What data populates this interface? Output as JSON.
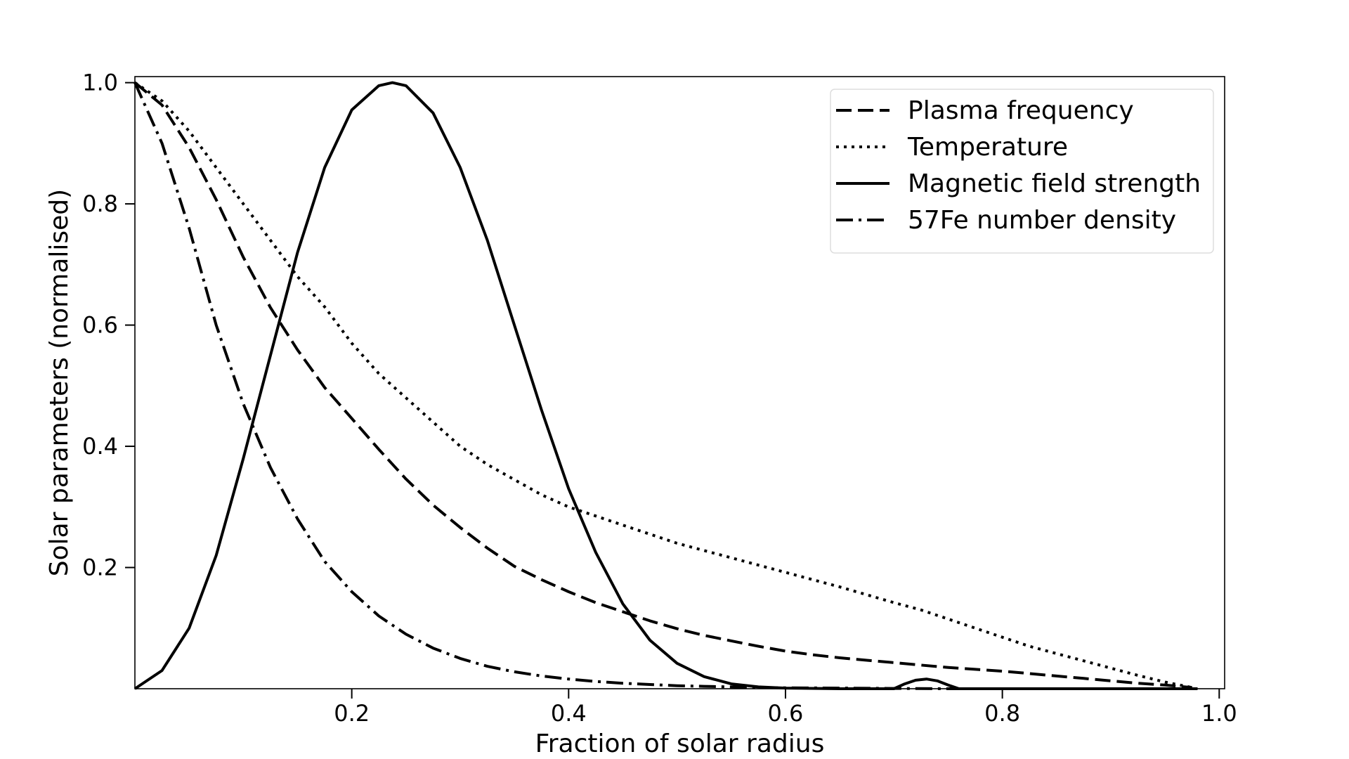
{
  "chart_data": {
    "type": "line",
    "title": "",
    "xlabel": "Fraction of solar radius",
    "ylabel": "Solar parameters (normalised)",
    "xlim": [
      0.0,
      1.005
    ],
    "ylim": [
      0.0,
      1.01
    ],
    "xticks": [
      0.2,
      0.4,
      0.6,
      0.8,
      1.0
    ],
    "xtick_labels": [
      "0.2",
      "0.4",
      "0.6",
      "0.8",
      "1.0"
    ],
    "yticks": [
      0.2,
      0.4,
      0.6,
      0.8,
      1.0
    ],
    "ytick_labels": [
      "0.2",
      "0.4",
      "0.6",
      "0.8",
      "1.0"
    ],
    "grid": false,
    "legend_position": "top-right",
    "series": [
      {
        "name": "Plasma frequency",
        "style": "dashed",
        "color": "#000000",
        "x": [
          0.0,
          0.025,
          0.05,
          0.075,
          0.1,
          0.125,
          0.15,
          0.175,
          0.2,
          0.225,
          0.25,
          0.275,
          0.3,
          0.325,
          0.35,
          0.375,
          0.4,
          0.425,
          0.45,
          0.475,
          0.5,
          0.525,
          0.55,
          0.575,
          0.6,
          0.625,
          0.65,
          0.675,
          0.7,
          0.725,
          0.75,
          0.775,
          0.8,
          0.825,
          0.85,
          0.875,
          0.9,
          0.925,
          0.95,
          0.975
        ],
        "y": [
          1.0,
          0.963,
          0.893,
          0.807,
          0.712,
          0.629,
          0.559,
          0.497,
          0.446,
          0.395,
          0.346,
          0.303,
          0.266,
          0.232,
          0.202,
          0.18,
          0.16,
          0.142,
          0.127,
          0.112,
          0.099,
          0.088,
          0.079,
          0.07,
          0.062,
          0.056,
          0.051,
          0.047,
          0.043,
          0.039,
          0.035,
          0.032,
          0.029,
          0.025,
          0.021,
          0.017,
          0.013,
          0.009,
          0.006,
          0.002
        ]
      },
      {
        "name": "Temperature",
        "style": "dotted",
        "color": "#000000",
        "x": [
          0.0,
          0.025,
          0.05,
          0.075,
          0.1,
          0.125,
          0.15,
          0.175,
          0.2,
          0.225,
          0.25,
          0.275,
          0.3,
          0.325,
          0.35,
          0.375,
          0.4,
          0.425,
          0.45,
          0.475,
          0.5,
          0.525,
          0.55,
          0.575,
          0.6,
          0.625,
          0.65,
          0.675,
          0.7,
          0.725,
          0.75,
          0.775,
          0.8,
          0.825,
          0.85,
          0.875,
          0.9,
          0.925,
          0.95,
          0.975
        ],
        "y": [
          1.0,
          0.97,
          0.92,
          0.86,
          0.8,
          0.74,
          0.68,
          0.63,
          0.57,
          0.52,
          0.48,
          0.44,
          0.4,
          0.37,
          0.345,
          0.32,
          0.3,
          0.285,
          0.27,
          0.255,
          0.24,
          0.228,
          0.216,
          0.204,
          0.192,
          0.18,
          0.168,
          0.155,
          0.142,
          0.13,
          0.115,
          0.1,
          0.085,
          0.07,
          0.058,
          0.046,
          0.034,
          0.022,
          0.011,
          0.002
        ]
      },
      {
        "name": "Magnetic field strength",
        "style": "solid",
        "color": "#000000",
        "x": [
          0.0,
          0.025,
          0.05,
          0.075,
          0.1,
          0.125,
          0.15,
          0.175,
          0.2,
          0.225,
          0.2375,
          0.25,
          0.275,
          0.3,
          0.325,
          0.35,
          0.375,
          0.4,
          0.425,
          0.45,
          0.475,
          0.5,
          0.525,
          0.55,
          0.575,
          0.6,
          0.65,
          0.7,
          0.71,
          0.72,
          0.73,
          0.74,
          0.75,
          0.76,
          0.8,
          0.9,
          0.98
        ],
        "y": [
          0.0,
          0.03,
          0.1,
          0.22,
          0.38,
          0.55,
          0.72,
          0.86,
          0.955,
          0.995,
          1.0,
          0.995,
          0.95,
          0.86,
          0.74,
          0.6,
          0.46,
          0.33,
          0.225,
          0.14,
          0.08,
          0.042,
          0.02,
          0.008,
          0.003,
          0.001,
          0.0,
          0.0,
          0.008,
          0.014,
          0.016,
          0.013,
          0.006,
          0.0,
          0.0,
          0.0,
          0.0
        ]
      },
      {
        "name": "57Fe number density",
        "style": "dashdot",
        "color": "#000000",
        "x": [
          0.0,
          0.025,
          0.05,
          0.075,
          0.1,
          0.125,
          0.15,
          0.175,
          0.2,
          0.225,
          0.25,
          0.275,
          0.3,
          0.325,
          0.35,
          0.375,
          0.4,
          0.425,
          0.45,
          0.475,
          0.5,
          0.525,
          0.55,
          0.575,
          0.6,
          0.65,
          0.7,
          0.75,
          0.8,
          0.9,
          0.98
        ],
        "y": [
          1.0,
          0.9,
          0.76,
          0.6,
          0.47,
          0.365,
          0.28,
          0.21,
          0.16,
          0.12,
          0.09,
          0.067,
          0.05,
          0.037,
          0.028,
          0.021,
          0.016,
          0.012,
          0.009,
          0.007,
          0.005,
          0.004,
          0.003,
          0.002,
          0.0015,
          0.001,
          0.0005,
          0.0,
          0.0,
          0.0,
          0.0
        ]
      }
    ]
  }
}
